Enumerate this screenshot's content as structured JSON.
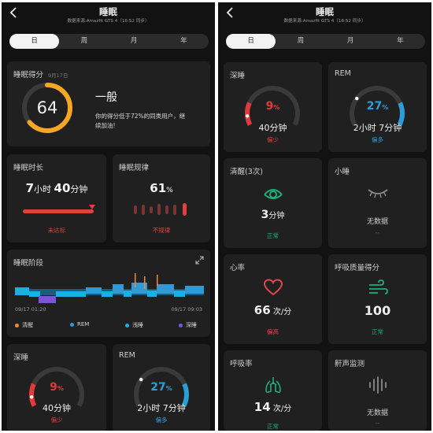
{
  "header": {
    "back_icon": "chevron-left-icon",
    "title": "睡眠",
    "source": "数据来源:Amazfit GTS 4（16:52 同步）"
  },
  "tabs": [
    {
      "label": "日",
      "active": true
    },
    {
      "label": "周",
      "active": false
    },
    {
      "label": "月",
      "active": false
    },
    {
      "label": "年",
      "active": false
    }
  ],
  "score_card": {
    "title": "睡眠得分",
    "date": "9月17日",
    "score": "64",
    "score_value": 64,
    "level": "一般",
    "description_line1": "你的得分低于72%的同类用户，继",
    "description_line2": "续加油!"
  },
  "duration_card": {
    "title": "睡眠时长",
    "value_parts": [
      "7",
      "小时 ",
      "40",
      "分钟"
    ],
    "status": "未达标",
    "status_color": "#e2403c"
  },
  "regularity_card": {
    "title": "睡眠规律",
    "value": "61",
    "unit": "%",
    "status": "不规律",
    "status_color": "#e2403c"
  },
  "stages_card": {
    "title": "睡眠阶段",
    "expand_icon": "expand-icon",
    "start_time": "09/17 01:20",
    "end_time": "09/17 09:03",
    "legend": [
      {
        "label": "清醒",
        "color": "#f08b2f"
      },
      {
        "label": "REM",
        "color": "#2e9ad8"
      },
      {
        "label": "浅睡",
        "color": "#1ab0e6"
      },
      {
        "label": "深睡",
        "color": "#7b55d6"
      }
    ]
  },
  "deep_card": {
    "title": "深睡",
    "percent": "9",
    "percent_value": 9,
    "unit": "%",
    "duration": "40分钟",
    "status": "偏少",
    "color": "#e03a3a"
  },
  "rem_card": {
    "title": "REM",
    "percent": "27",
    "percent_value": 27,
    "unit": "%",
    "duration": "2小时 7分钟",
    "status": "偏多",
    "color": "#2a9ed8"
  },
  "awake_card": {
    "title": "清醒(3次)",
    "icon": "eye-icon",
    "value": "3",
    "unit": "分钟",
    "status": "正常",
    "color": "#1fae7a"
  },
  "nap_card": {
    "title": "小睡",
    "icon": "closed-eye-icon",
    "value": "无数据",
    "dash": "--"
  },
  "heart_card": {
    "title": "心率",
    "icon": "heart-icon",
    "value": "66",
    "unit": " 次/分",
    "status": "偏高",
    "color": "#e04848"
  },
  "breath_quality_card": {
    "title": "呼吸质量得分",
    "icon": "wind-icon",
    "value": "100",
    "status": "正常",
    "color": "#1fae7a"
  },
  "respiration_card": {
    "title": "呼吸率",
    "icon": "lungs-icon",
    "value": "14",
    "unit": " 次/分",
    "status": "正常",
    "color": "#1fae7a"
  },
  "snore_card": {
    "title": "鼾声监测",
    "icon": "soundwave-icon",
    "value": "无数据",
    "dash": "--"
  }
}
